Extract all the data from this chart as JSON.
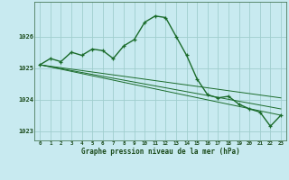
{
  "title": "Graphe pression niveau de la mer (hPa)",
  "background_color": "#c8eaf0",
  "grid_color": "#a0cece",
  "line_color": "#1a6b2a",
  "xlim": [
    -0.5,
    23.5
  ],
  "ylim": [
    1022.7,
    1027.1
  ],
  "yticks": [
    1023,
    1024,
    1025,
    1026
  ],
  "xticks": [
    0,
    1,
    2,
    3,
    4,
    5,
    6,
    7,
    8,
    9,
    10,
    11,
    12,
    13,
    14,
    15,
    16,
    17,
    18,
    19,
    20,
    21,
    22,
    23
  ],
  "xlabel_fontsize": 5.5,
  "xtick_fontsize": 4.2,
  "ytick_fontsize": 5.0,
  "series": [
    {
      "x": [
        0,
        1,
        2,
        3,
        4,
        5,
        6,
        7,
        8,
        9,
        10,
        11,
        12,
        13,
        14,
        15,
        16,
        17,
        18,
        19,
        20,
        21,
        22,
        23
      ],
      "y": [
        1025.1,
        1025.3,
        1025.2,
        1025.5,
        1025.4,
        1025.6,
        1025.55,
        1025.3,
        1025.7,
        1025.9,
        1026.45,
        1026.65,
        1026.6,
        1026.0,
        1025.4,
        1024.65,
        1024.15,
        1024.05,
        1024.1,
        1023.85,
        1023.7,
        1023.6,
        1023.15,
        1023.5
      ],
      "marker": "+",
      "linewidth": 1.0,
      "markersize": 3.5
    },
    {
      "x": [
        0,
        23
      ],
      "y": [
        1025.1,
        1023.5
      ],
      "marker": null,
      "linewidth": 0.7
    },
    {
      "x": [
        0,
        23
      ],
      "y": [
        1025.1,
        1023.7
      ],
      "marker": null,
      "linewidth": 0.7
    },
    {
      "x": [
        0,
        23
      ],
      "y": [
        1025.1,
        1024.05
      ],
      "marker": null,
      "linewidth": 0.7
    }
  ]
}
